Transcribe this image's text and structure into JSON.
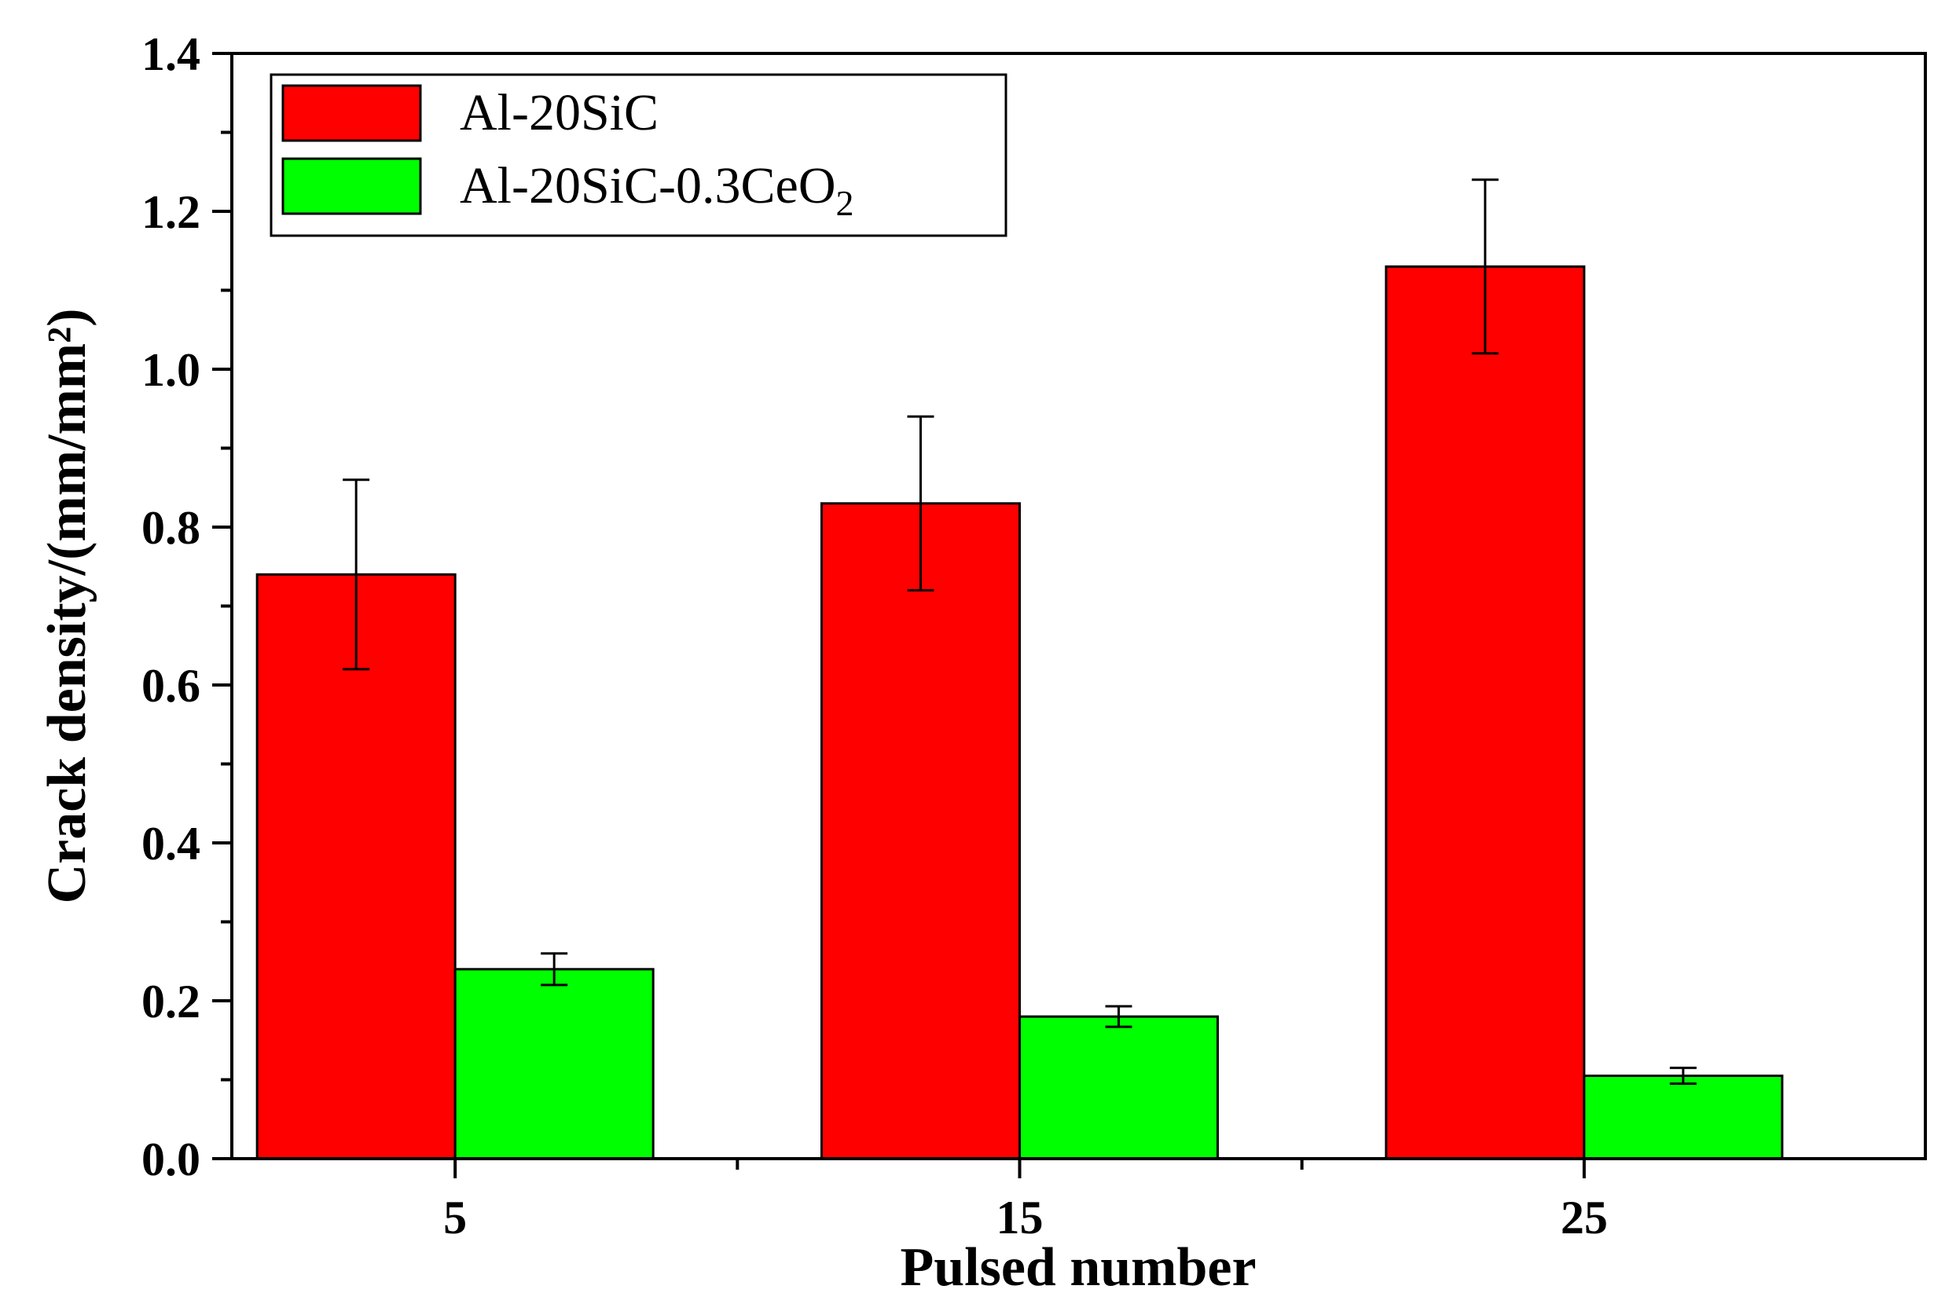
{
  "chart_data": {
    "type": "bar",
    "title": "",
    "xlabel": "Pulsed number",
    "ylabel": "Crack density/(mm/mm²)",
    "categories": [
      "5",
      "15",
      "25"
    ],
    "ylim": [
      0,
      1.4
    ],
    "yticks": [
      0.0,
      0.2,
      0.4,
      0.6,
      0.8,
      1.0,
      1.2,
      1.4
    ],
    "ytick_labels": [
      "0.0",
      "0.2",
      "0.4",
      "0.6",
      "0.8",
      "1.0",
      "1.2",
      "1.4"
    ],
    "series": [
      {
        "name": "Al-20SiC",
        "name_main": "Al-20SiC",
        "name_sub": "",
        "color": "#ff0000",
        "values": [
          0.74,
          0.83,
          1.13
        ],
        "errors": [
          0.12,
          0.11,
          0.11
        ]
      },
      {
        "name": "Al-20SiC-0.3CeO2",
        "name_main": "Al-20SiC-0.3CeO",
        "name_sub": "2",
        "color": "#00ff00",
        "values": [
          0.24,
          0.18,
          0.105
        ],
        "errors": [
          0.02,
          0.013,
          0.01
        ]
      }
    ],
    "legend_position": "top-left",
    "grid": false
  }
}
